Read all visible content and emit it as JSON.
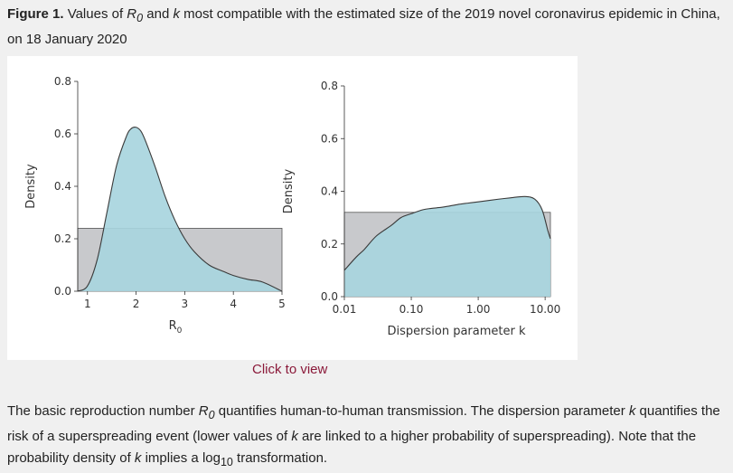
{
  "caption": {
    "label": "Figure 1.",
    "text_a": "Values of ",
    "r0_symbol": "R",
    "r0_sub": "0",
    "text_b": " and ",
    "k_symbol": "k",
    "text_c": " most compatible with the estimated size of the 2019 novel coronavirus epidemic in China, on 18 January 2020"
  },
  "link": {
    "label": "Click to view"
  },
  "footnote": {
    "part1": "The basic reproduction number ",
    "r0_symbol": "R",
    "r0_sub": "0",
    "part2": " quantifies human-to-human transmission. The dispersion parameter ",
    "k1": "k",
    "part3": " quantifies the risk of a superspreading event (lower values of ",
    "k2": "k",
    "part4": " are linked to a higher probability of superspreading). Note that the probability density of ",
    "k3": "k",
    "part5": " implies a log",
    "log_sub": "10",
    "part6": " transformation."
  },
  "colors": {
    "posterior_fill": "#a8d5de",
    "prior_fill": "#c8c9cc",
    "curve_stroke": "#3a3a3a",
    "link": "#8b1a3a"
  },
  "chart_data": [
    {
      "type": "area",
      "xlabel": "R",
      "xlabel_sub": "0",
      "ylabel": "Density",
      "xlim": [
        0.8,
        5
      ],
      "ylim": [
        0,
        0.8
      ],
      "x_ticks": [
        1,
        2,
        3,
        4,
        5
      ],
      "x_tick_labels": [
        "1",
        "2",
        "3",
        "4",
        "5"
      ],
      "y_ticks": [
        0.0,
        0.2,
        0.4,
        0.6,
        0.8
      ],
      "y_tick_labels": [
        "0.0",
        "0.2",
        "0.4",
        "0.6",
        "0.8"
      ],
      "prior": {
        "x": [
          0.8,
          5
        ],
        "y": [
          0.24,
          0.24
        ]
      },
      "posterior": {
        "x": [
          0.8,
          1.0,
          1.2,
          1.4,
          1.6,
          1.8,
          1.9,
          2.0,
          2.1,
          2.2,
          2.4,
          2.6,
          2.8,
          3.0,
          3.2,
          3.5,
          3.8,
          4.0,
          4.3,
          4.6,
          5.0
        ],
        "y": [
          0.0,
          0.02,
          0.12,
          0.3,
          0.48,
          0.59,
          0.62,
          0.625,
          0.61,
          0.57,
          0.47,
          0.36,
          0.27,
          0.2,
          0.15,
          0.1,
          0.075,
          0.06,
          0.045,
          0.035,
          0.0
        ]
      }
    },
    {
      "type": "area",
      "xlabel": "Dispersion parameter k",
      "ylabel": "Density",
      "x_scale": "log",
      "xlim": [
        0.01,
        12
      ],
      "ylim": [
        0,
        0.8
      ],
      "x_ticks": [
        0.01,
        0.1,
        1,
        10
      ],
      "x_tick_labels": [
        "0.01",
        "0.10",
        "1.00",
        "10.00"
      ],
      "y_ticks": [
        0.0,
        0.2,
        0.4,
        0.6,
        0.8
      ],
      "y_tick_labels": [
        "0.0",
        "0.2",
        "0.4",
        "0.6",
        "0.8"
      ],
      "prior": {
        "x": [
          0.01,
          12
        ],
        "y": [
          0.32,
          0.32
        ]
      },
      "posterior": {
        "x": [
          0.01,
          0.015,
          0.02,
          0.03,
          0.05,
          0.07,
          0.1,
          0.15,
          0.2,
          0.3,
          0.5,
          0.7,
          1,
          2,
          3,
          5,
          7,
          9,
          11,
          12
        ],
        "y": [
          0.1,
          0.15,
          0.18,
          0.23,
          0.27,
          0.3,
          0.315,
          0.33,
          0.335,
          0.34,
          0.35,
          0.355,
          0.36,
          0.37,
          0.375,
          0.38,
          0.37,
          0.33,
          0.25,
          0.22
        ]
      }
    }
  ]
}
